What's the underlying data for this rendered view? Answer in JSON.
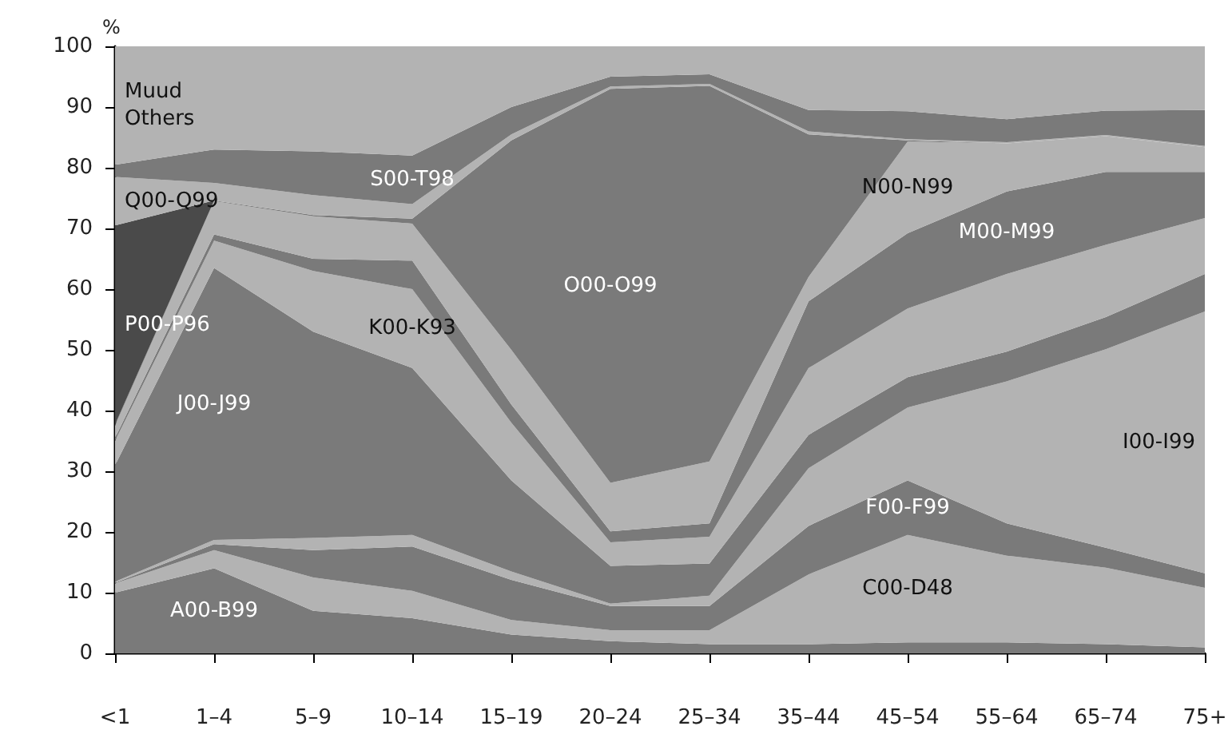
{
  "chart_data": {
    "type": "area",
    "ylabel": "%",
    "stacked": true,
    "ylim": [
      0,
      100
    ],
    "yticks": [
      0,
      10,
      20,
      30,
      40,
      50,
      60,
      70,
      80,
      90,
      100
    ],
    "categories": [
      "<1",
      "1–4",
      "5–9",
      "10–14",
      "15–19",
      "20–24",
      "25–34",
      "35–44",
      "45–54",
      "55–64",
      "65–74",
      "75+"
    ],
    "series": [
      {
        "name": "A00-B99",
        "color": "#7a7a7a",
        "values": [
          10,
          14,
          7,
          5.8,
          3.1,
          2,
          1.5,
          1.5,
          1.8,
          1.8,
          1.5,
          1
        ]
      },
      {
        "name": "C00-D48",
        "color": "#b3b3b3",
        "values": [
          1.5,
          3,
          5.5,
          4.5,
          2.4,
          1.8,
          2.3,
          11.5,
          17.7,
          14.3,
          12.6,
          9.8
        ]
      },
      {
        "name": "F00-F99",
        "color": "#7a7a7a",
        "values": [
          0.1,
          1,
          4.5,
          7.3,
          6.6,
          4,
          4,
          8,
          9,
          5.3,
          3.3,
          2.4
        ]
      },
      {
        "name": "I00-I99",
        "color": "#b3b3b3",
        "values": [
          0.2,
          0.7,
          2,
          1.9,
          1.4,
          0.4,
          1.7,
          9.5,
          12,
          23.4,
          32.7,
          43.1
        ]
      },
      {
        "name": "J00-J99",
        "color": "#7a7a7a",
        "values": [
          19.2,
          44.8,
          34,
          27.5,
          15,
          6.2,
          5.3,
          5.5,
          5,
          4.9,
          5.3,
          6.2
        ]
      },
      {
        "name": "K00-K93",
        "color": "#b3b3b3",
        "values": [
          4,
          4.5,
          10,
          13,
          9.5,
          3.9,
          4.4,
          11,
          11.3,
          12.8,
          11.9,
          9.2
        ]
      },
      {
        "name": "M00-M99",
        "color": "#7a7a7a",
        "values": [
          0.5,
          1,
          2,
          4.7,
          3,
          1.8,
          2.2,
          11,
          12.4,
          13.6,
          12,
          7.6
        ]
      },
      {
        "name": "N00-N99",
        "color": "#b3b3b3",
        "values": [
          2,
          5.5,
          7,
          6.1,
          9,
          8,
          10.2,
          4,
          15.1,
          7.9,
          5.9,
          4.1
        ]
      },
      {
        "name": "O00-O99",
        "color": "#7a7a7a",
        "values": [
          0.2,
          0.1,
          0.2,
          0.8,
          34.5,
          64.9,
          61.9,
          23.5,
          0.2,
          0,
          0,
          0
        ]
      },
      {
        "name": "P00-P96",
        "color": "#4a4a4a",
        "values": [
          32.8,
          0,
          0,
          0,
          0,
          0,
          0,
          0,
          0,
          0,
          0,
          0
        ]
      },
      {
        "name": "Q00-Q99",
        "color": "#b3b3b3",
        "values": [
          8,
          2.9,
          3.3,
          2.4,
          1,
          0.4,
          0.3,
          0.5,
          0.2,
          0.2,
          0.2,
          0.2
        ]
      },
      {
        "name": "S00-T98",
        "color": "#7a7a7a",
        "values": [
          2,
          5.5,
          7.2,
          8,
          4.5,
          1.6,
          1.6,
          3.5,
          4.6,
          3.8,
          4,
          5.9
        ]
      },
      {
        "name": "Muud\nOthers",
        "color": "#b3b3b3",
        "values": [
          19.5,
          17,
          17.3,
          18,
          10,
          5,
          4.6,
          10.5,
          10.7,
          12,
          10.6,
          10.5
        ]
      }
    ]
  }
}
